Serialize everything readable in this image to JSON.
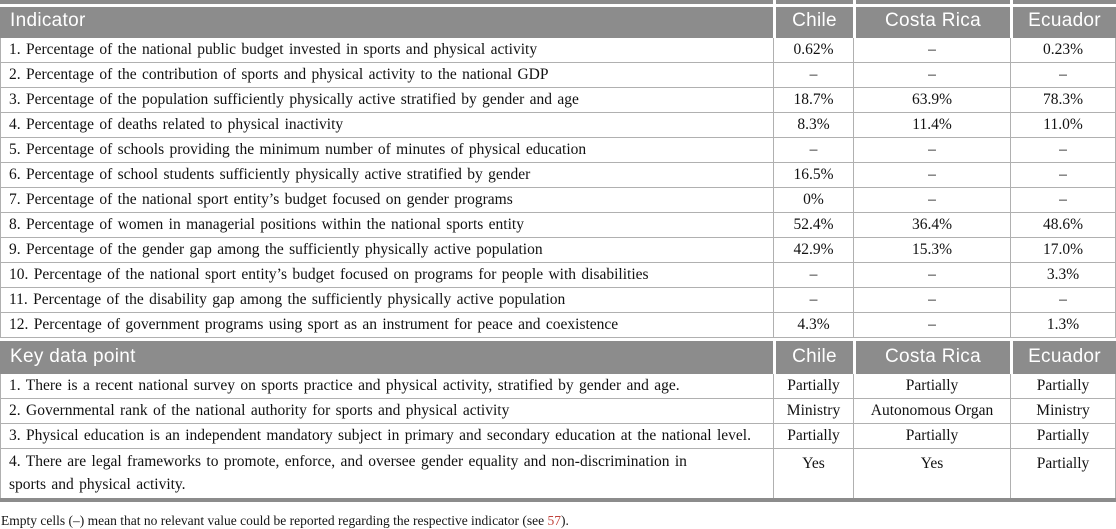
{
  "columns": [
    "Chile",
    "Costa Rica",
    "Ecuador"
  ],
  "sections": [
    {
      "header": "Indicator",
      "rows": [
        {
          "label": "1. Percentage of the national public budget invested in sports and physical activity",
          "values": [
            "0.62%",
            "–",
            "0.23%"
          ]
        },
        {
          "label": "2. Percentage of the contribution of sports and physical activity to the national GDP",
          "values": [
            "–",
            "–",
            "–"
          ]
        },
        {
          "label": "3. Percentage of the population sufficiently physically active stratified by gender and age",
          "values": [
            "18.7%",
            "63.9%",
            "78.3%"
          ]
        },
        {
          "label": "4. Percentage of deaths related to physical inactivity",
          "values": [
            "8.3%",
            "11.4%",
            "11.0%"
          ]
        },
        {
          "label": "5. Percentage of schools providing the minimum number of minutes of physical education",
          "values": [
            "–",
            "–",
            "–"
          ]
        },
        {
          "label": "6. Percentage of school students sufficiently physically active stratified by gender",
          "values": [
            "16.5%",
            "–",
            "–"
          ]
        },
        {
          "label": "7. Percentage of the national sport entity’s budget focused on gender programs",
          "values": [
            "0%",
            "–",
            "–"
          ]
        },
        {
          "label": "8. Percentage of women in managerial positions within the national sports entity",
          "values": [
            "52.4%",
            "36.4%",
            "48.6%"
          ]
        },
        {
          "label": "9. Percentage of the gender gap among the sufficiently physically active population",
          "values": [
            "42.9%",
            "15.3%",
            "17.0%"
          ]
        },
        {
          "label": "10. Percentage of the national sport entity’s budget focused on programs for people with disabilities",
          "values": [
            "–",
            "–",
            "3.3%"
          ]
        },
        {
          "label": "11. Percentage of the disability gap among the sufficiently physically active population",
          "values": [
            "–",
            "–",
            "–"
          ]
        },
        {
          "label": "12. Percentage of government programs using sport as an instrument for peace and coexistence",
          "values": [
            "4.3%",
            "–",
            "1.3%"
          ]
        }
      ]
    },
    {
      "header": "Key data point",
      "rows": [
        {
          "label": "1. There is a recent national survey on sports practice and physical activity, stratified by gender and age.",
          "values": [
            "Partially",
            "Partially",
            "Partially"
          ]
        },
        {
          "label": "2. Governmental rank of the national authority for sports and physical activity",
          "values": [
            "Ministry",
            "Autonomous Organ",
            "Ministry"
          ]
        },
        {
          "label": "3. Physical education is an independent mandatory subject in primary and secondary education at the national level.",
          "values": [
            "Partially",
            "Partially",
            "Partially"
          ]
        },
        {
          "label": "4. There are legal frameworks to promote, enforce, and oversee gender equality and non-discrimination in sports and physical activity.",
          "values": [
            "Yes",
            "Yes",
            "Partially"
          ]
        }
      ]
    }
  ],
  "footnote": {
    "prefix": "Empty cells (–) mean that no relevant value could be reported regarding the respective indicator (see ",
    "citation": "57",
    "suffix": ")."
  },
  "colors": {
    "header_bg": "#8c8c8c",
    "header_text": "#ffffff",
    "border": "#b0b0b0",
    "citation_red": "#c0413a"
  }
}
